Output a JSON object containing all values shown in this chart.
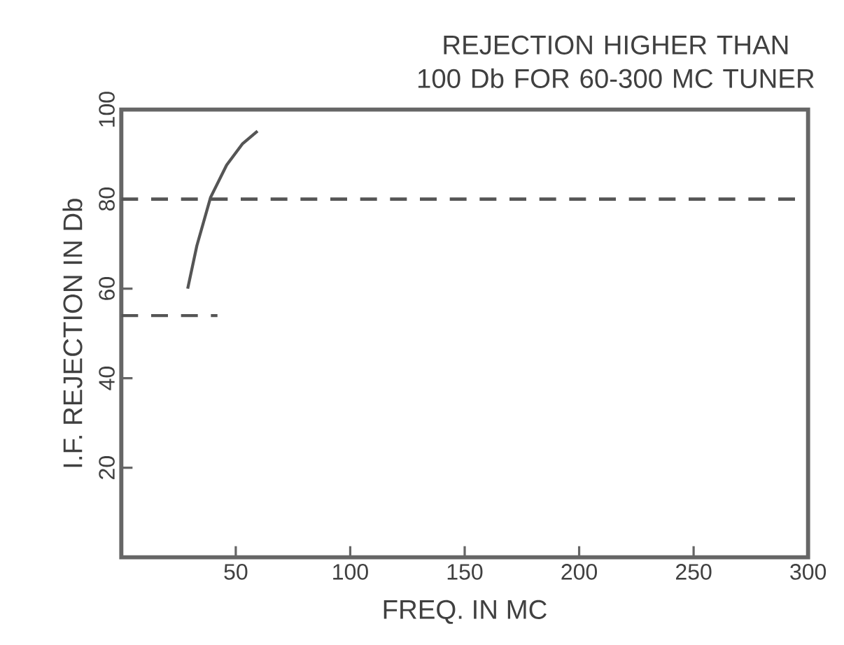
{
  "chart_data": {
    "type": "line",
    "title": "REJECTION HIGHER THAN 100 Db FOR 60-300 MC TUNER",
    "xlabel": "FREQ. IN MC",
    "ylabel": "I.F. REJECTION IN Db",
    "xlim": [
      0,
      300
    ],
    "ylim": [
      0,
      100
    ],
    "xticks": [
      50,
      100,
      150,
      200,
      250,
      300
    ],
    "yticks": [
      20,
      40,
      60,
      80,
      100
    ],
    "grid": false,
    "series": [
      {
        "color": "#555555",
        "x": [
          29,
          33,
          39,
          46,
          53,
          59.5
        ],
        "values": [
          60,
          69.6,
          80.4,
          87.6,
          92.4,
          95.2
        ],
        "line_style": "solid"
      },
      {
        "color": "#555555",
        "x": [
          0,
          42
        ],
        "values": [
          54,
          54
        ],
        "line_style": "dashed"
      }
    ],
    "ref_lines": [
      {
        "axis": "y",
        "value": 80,
        "color": "#555555",
        "line_style": "dashed"
      }
    ]
  }
}
